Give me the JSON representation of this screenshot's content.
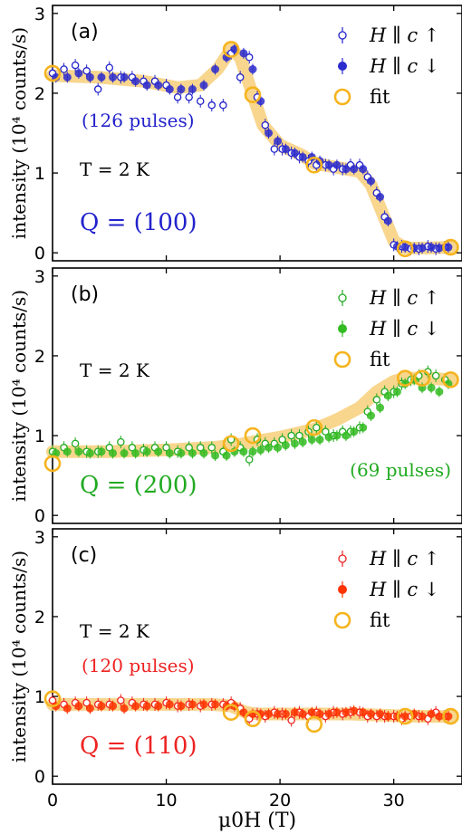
{
  "chart_data": [
    {
      "type": "scatter",
      "panel_label": "(a)",
      "ylabel": "intensity (10⁴ counts/s)",
      "xlabel": "",
      "xlim": [
        0,
        36
      ],
      "ylim": [
        -0.1,
        3.1
      ],
      "yticks": [
        "0",
        "1",
        "2",
        "3"
      ],
      "xticks": [
        "0",
        "10",
        "20",
        "30"
      ],
      "temperature": "T = 2 K",
      "q_label": "Q = (100)",
      "pulses": "(126 pulses)",
      "pulses_pos": "left",
      "accent_color": "#2222cc",
      "fill_color": "#2b2bcf",
      "legend": [
        "H ∥ c ↑",
        "H ∥ c ↓",
        "fit"
      ],
      "up_x": [
        0,
        1,
        2,
        3,
        4,
        5,
        6,
        7,
        8,
        9,
        10,
        11,
        12,
        13,
        14,
        15,
        15.7,
        16.5,
        17.3,
        18,
        18.7,
        19.5,
        20.2,
        21,
        21.7,
        22.5,
        23.2,
        24,
        24.7,
        25.5,
        26.2,
        27,
        27.7,
        28.5,
        29.2,
        30,
        30.7,
        31.5,
        32.2,
        33,
        33.7,
        34.5
      ],
      "up_y": [
        2.25,
        2.3,
        2.35,
        2.28,
        2.05,
        2.32,
        2.2,
        2.2,
        2.15,
        2.15,
        2.1,
        1.95,
        1.95,
        1.9,
        1.85,
        1.85,
        2.5,
        2.2,
        2.45,
        1.95,
        1.6,
        1.3,
        1.3,
        1.25,
        1.2,
        1.15,
        1.1,
        1.1,
        1.05,
        1.05,
        1.1,
        1.1,
        0.95,
        0.75,
        0.45,
        0.1,
        0.08,
        0.05,
        0.05,
        0.08,
        0.05,
        0.07
      ],
      "down_x": [
        0,
        1,
        2,
        3,
        4,
        5,
        6,
        7,
        8,
        9,
        10,
        11,
        12,
        13,
        14,
        15,
        15.7,
        16.5,
        17.3,
        18,
        18.7,
        19.5,
        20.2,
        21,
        21.7,
        22.5,
        23.2,
        24,
        24.7,
        25.5,
        26.2,
        27,
        27.7,
        28.5,
        29.2,
        30,
        30.7,
        31.5,
        32.2,
        33,
        33.7,
        34.5
      ],
      "down_y": [
        2.2,
        2.2,
        2.25,
        2.2,
        2.2,
        2.2,
        2.2,
        2.15,
        2.1,
        2.1,
        2.05,
        2.05,
        2.05,
        2.1,
        2.3,
        2.45,
        2.55,
        2.5,
        2.3,
        1.9,
        1.5,
        1.4,
        1.3,
        1.25,
        1.2,
        1.2,
        1.15,
        1.1,
        1.1,
        1.05,
        1.05,
        1.05,
        0.9,
        0.7,
        0.4,
        0.08,
        0.07,
        0.06,
        0.06,
        0.07,
        0.06,
        0.07
      ],
      "fit_x": [
        0,
        15.7,
        17.6,
        23,
        31,
        35
      ],
      "fit_y": [
        2.25,
        2.55,
        1.98,
        1.1,
        0.05,
        0.07
      ],
      "band_x": [
        0,
        4,
        8,
        11,
        13,
        14.5,
        15.7,
        16.5,
        17.6,
        18.5,
        20,
        22,
        23,
        25,
        27,
        28,
        29,
        30,
        31,
        33,
        35
      ],
      "band_y": [
        2.22,
        2.2,
        2.15,
        2.07,
        2.1,
        2.3,
        2.55,
        2.45,
        1.98,
        1.6,
        1.35,
        1.22,
        1.12,
        1.07,
        1.02,
        0.85,
        0.5,
        0.15,
        0.06,
        0.06,
        0.07
      ]
    },
    {
      "type": "scatter",
      "panel_label": "(b)",
      "ylabel": "intensity (10⁴ counts/s)",
      "xlabel": "",
      "xlim": [
        0,
        36
      ],
      "ylim": [
        -0.1,
        3.1
      ],
      "yticks": [
        "0",
        "1",
        "2",
        "3"
      ],
      "xticks": [
        "0",
        "10",
        "20",
        "30"
      ],
      "temperature": "T = 2 K",
      "q_label": "Q = (200)",
      "pulses": "(69 pulses)",
      "pulses_pos": "right",
      "accent_color": "#22aa22",
      "fill_color": "#33bb22",
      "legend": [
        "H ∥ c ↑",
        "H ∥ c ↓",
        "fit"
      ],
      "up_x": [
        0,
        1,
        2,
        3,
        4,
        5,
        6,
        7,
        8,
        9,
        10,
        11,
        12,
        13,
        14,
        15,
        15.7,
        16.5,
        17.3,
        18,
        18.7,
        19.5,
        20.2,
        21,
        21.7,
        22.5,
        23.2,
        24,
        24.7,
        25.5,
        26.2,
        27,
        27.7,
        28.5,
        29.2,
        30,
        30.7,
        31.5,
        32.2,
        33,
        33.7,
        34.5
      ],
      "up_y": [
        0.8,
        0.85,
        0.9,
        0.8,
        0.8,
        0.85,
        0.92,
        0.85,
        0.82,
        0.85,
        0.85,
        0.8,
        0.85,
        0.85,
        0.85,
        0.8,
        0.95,
        0.85,
        0.7,
        0.95,
        0.9,
        0.9,
        0.95,
        1.0,
        1.0,
        1.05,
        1.1,
        1.05,
        1.0,
        1.05,
        1.05,
        1.1,
        1.3,
        1.45,
        1.55,
        1.55,
        1.65,
        1.7,
        1.75,
        1.8,
        1.75,
        1.7
      ],
      "down_x": [
        0,
        1,
        2,
        3,
        4,
        5,
        6,
        7,
        8,
        9,
        10,
        11,
        12,
        13,
        14,
        15,
        15.7,
        16.5,
        17.3,
        18,
        18.7,
        19.5,
        20.2,
        21,
        21.7,
        22.5,
        23.2,
        24,
        24.7,
        25.5,
        26.2,
        27,
        27.7,
        28.5,
        29.2,
        30,
        30.7,
        31.5,
        32.2,
        33,
        33.7,
        34.5
      ],
      "down_y": [
        0.78,
        0.8,
        0.8,
        0.78,
        0.8,
        0.78,
        0.78,
        0.78,
        0.8,
        0.8,
        0.78,
        0.78,
        0.78,
        0.78,
        0.75,
        0.75,
        0.8,
        0.8,
        0.8,
        0.82,
        0.85,
        0.85,
        0.88,
        0.9,
        0.92,
        0.95,
        0.95,
        0.98,
        1.0,
        1.0,
        1.05,
        1.1,
        1.25,
        1.35,
        1.5,
        1.55,
        1.65,
        1.7,
        1.6,
        1.6,
        1.55,
        1.65
      ],
      "fit_x": [
        0,
        15.7,
        17.6,
        23,
        31,
        32.5,
        35
      ],
      "fit_y": [
        0.65,
        0.9,
        1.0,
        1.1,
        1.72,
        1.72,
        1.7
      ],
      "band_x": [
        0,
        5,
        10,
        14,
        16,
        18,
        20,
        23,
        25,
        27,
        28.5,
        30,
        31,
        33,
        35
      ],
      "band_y": [
        0.8,
        0.8,
        0.82,
        0.85,
        0.88,
        0.93,
        0.98,
        1.08,
        1.2,
        1.35,
        1.55,
        1.68,
        1.72,
        1.72,
        1.7
      ]
    },
    {
      "type": "scatter",
      "panel_label": "(c)",
      "ylabel": "intensity (10⁴ counts/s)",
      "xlabel": "μ0H (T)",
      "xlim": [
        0,
        36
      ],
      "ylim": [
        -0.1,
        3.1
      ],
      "yticks": [
        "0",
        "1",
        "2",
        "3"
      ],
      "xticks": [
        "0",
        "10",
        "20",
        "30"
      ],
      "temperature": "T = 2 K",
      "q_label": "Q = (110)",
      "pulses": "(120 pulses)",
      "pulses_pos": "left",
      "accent_color": "#ee2222",
      "fill_color": "#ff3300",
      "legend": [
        "H ∥ c ↑",
        "H ∥ c ↓",
        "fit"
      ],
      "up_x": [
        0,
        1,
        2,
        3,
        4,
        5,
        6,
        7,
        8,
        9,
        10,
        11,
        12,
        13,
        14,
        15,
        15.7,
        16.5,
        17.3,
        18,
        18.7,
        19.5,
        20.2,
        21,
        21.7,
        22.5,
        23.2,
        24,
        24.7,
        25.5,
        26.2,
        27,
        27.7,
        28.5,
        29.2,
        30,
        30.7,
        31.5,
        32.2,
        33,
        33.7,
        34.5
      ],
      "up_y": [
        0.95,
        0.9,
        0.92,
        0.92,
        0.9,
        0.9,
        0.95,
        0.92,
        0.9,
        0.9,
        0.92,
        0.88,
        0.9,
        0.88,
        0.9,
        0.9,
        0.92,
        0.85,
        0.72,
        0.78,
        0.75,
        0.8,
        0.78,
        0.7,
        0.8,
        0.75,
        0.8,
        0.75,
        0.8,
        0.78,
        0.8,
        0.8,
        0.75,
        0.75,
        0.75,
        0.75,
        0.72,
        0.75,
        0.75,
        0.72,
        0.8,
        0.75
      ],
      "down_x": [
        0,
        1,
        2,
        3,
        4,
        5,
        6,
        7,
        8,
        9,
        10,
        11,
        12,
        13,
        14,
        15,
        15.7,
        16.5,
        17.3,
        18,
        18.7,
        19.5,
        20.2,
        21,
        21.7,
        22.5,
        23.2,
        24,
        24.7,
        25.5,
        26.2,
        27,
        27.7,
        28.5,
        29.2,
        30,
        30.7,
        31.5,
        32.2,
        33,
        33.7,
        34.5
      ],
      "down_y": [
        0.88,
        0.85,
        0.88,
        0.85,
        0.88,
        0.88,
        0.85,
        0.88,
        0.88,
        0.88,
        0.9,
        0.88,
        0.9,
        0.9,
        0.9,
        0.88,
        0.88,
        0.8,
        0.78,
        0.78,
        0.78,
        0.78,
        0.78,
        0.8,
        0.78,
        0.8,
        0.78,
        0.78,
        0.8,
        0.8,
        0.82,
        0.8,
        0.78,
        0.78,
        0.75,
        0.75,
        0.75,
        0.78,
        0.75,
        0.78,
        0.75,
        0.75
      ],
      "fit_x": [
        0,
        15.7,
        17.6,
        23,
        31,
        35
      ],
      "fit_y": [
        0.97,
        0.8,
        0.72,
        0.65,
        0.75,
        0.75
      ],
      "band_x": [
        0,
        5,
        10,
        14,
        15.7,
        17,
        18,
        20,
        23,
        26,
        30,
        33,
        35
      ],
      "band_y": [
        0.9,
        0.9,
        0.9,
        0.9,
        0.88,
        0.8,
        0.78,
        0.78,
        0.78,
        0.78,
        0.76,
        0.75,
        0.75
      ]
    }
  ]
}
